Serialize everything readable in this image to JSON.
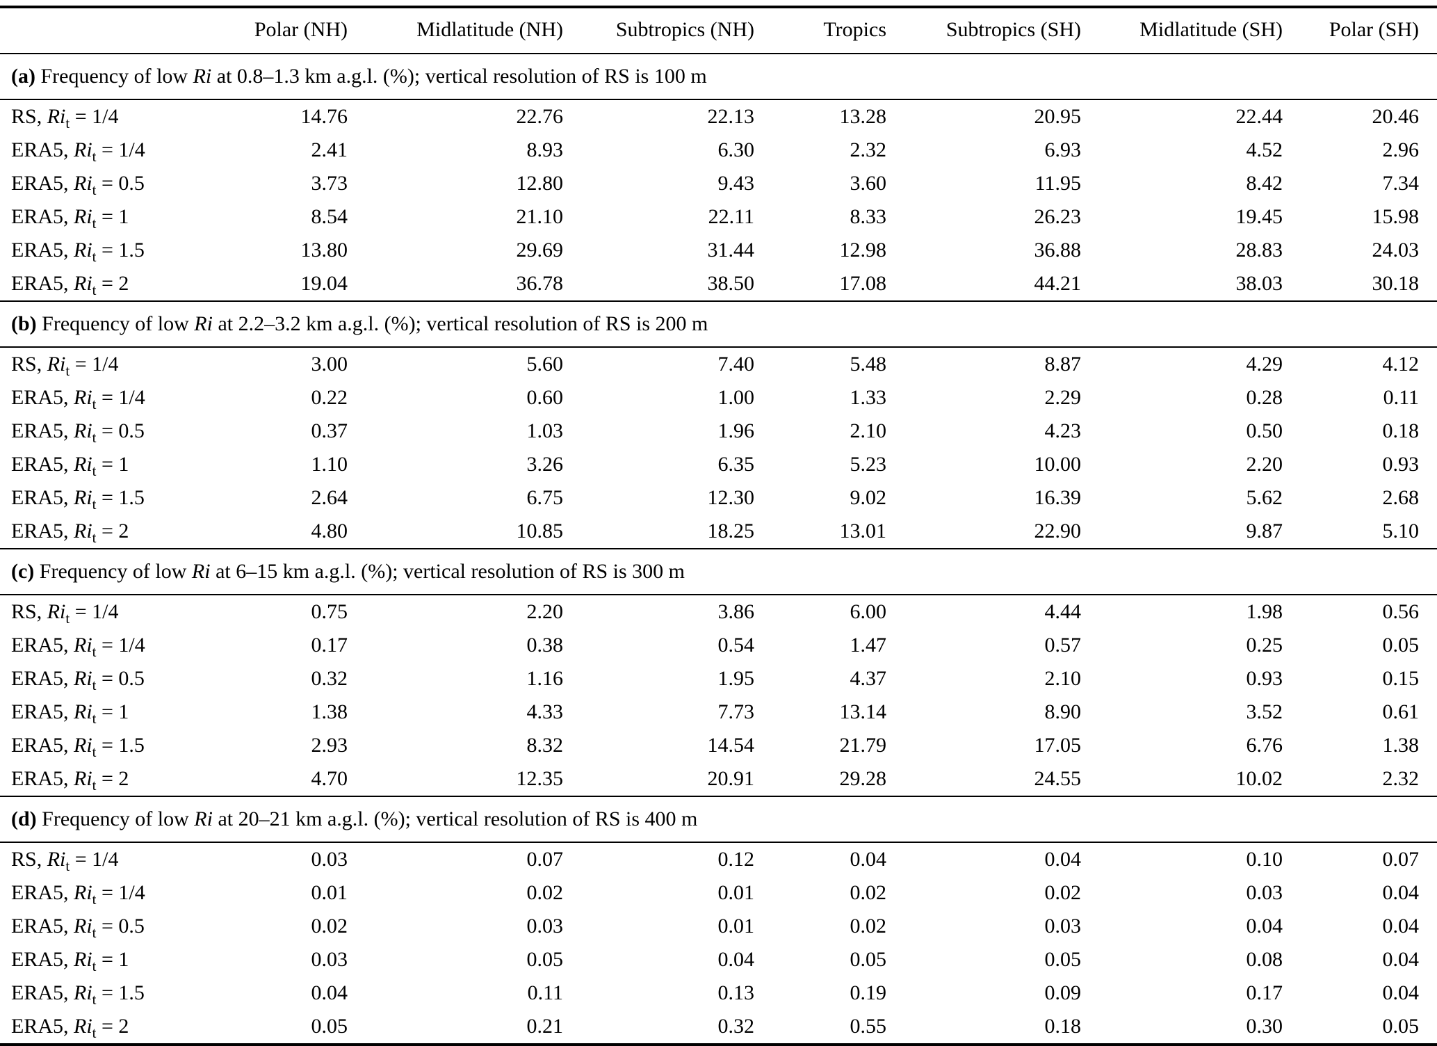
{
  "table": {
    "columns": [
      "Polar (NH)",
      "Midlatitude (NH)",
      "Subtropics (NH)",
      "Tropics",
      "Subtropics (SH)",
      "Midlatitude (SH)",
      "Polar (SH)"
    ],
    "notation": {
      "ri": "Ri",
      "subscript": "t",
      "equals": "="
    },
    "sections": [
      {
        "tag": "(a)",
        "caption_before_ri": "Frequency of low",
        "caption_after_ri": "at 0.8–1.3 km a.g.l. (%); vertical resolution of RS is 100 m",
        "rows": [
          {
            "source": "RS",
            "threshold": "1/4",
            "values": [
              "14.76",
              "22.76",
              "22.13",
              "13.28",
              "20.95",
              "22.44",
              "20.46"
            ]
          },
          {
            "source": "ERA5",
            "threshold": "1/4",
            "values": [
              "2.41",
              "8.93",
              "6.30",
              "2.32",
              "6.93",
              "4.52",
              "2.96"
            ]
          },
          {
            "source": "ERA5",
            "threshold": "0.5",
            "values": [
              "3.73",
              "12.80",
              "9.43",
              "3.60",
              "11.95",
              "8.42",
              "7.34"
            ]
          },
          {
            "source": "ERA5",
            "threshold": "1",
            "values": [
              "8.54",
              "21.10",
              "22.11",
              "8.33",
              "26.23",
              "19.45",
              "15.98"
            ]
          },
          {
            "source": "ERA5",
            "threshold": "1.5",
            "values": [
              "13.80",
              "29.69",
              "31.44",
              "12.98",
              "36.88",
              "28.83",
              "24.03"
            ]
          },
          {
            "source": "ERA5",
            "threshold": "2",
            "values": [
              "19.04",
              "36.78",
              "38.50",
              "17.08",
              "44.21",
              "38.03",
              "30.18"
            ]
          }
        ]
      },
      {
        "tag": "(b)",
        "caption_before_ri": "Frequency of low",
        "caption_after_ri": "at 2.2–3.2 km a.g.l. (%); vertical resolution of RS is 200 m",
        "rows": [
          {
            "source": "RS",
            "threshold": "1/4",
            "values": [
              "3.00",
              "5.60",
              "7.40",
              "5.48",
              "8.87",
              "4.29",
              "4.12"
            ]
          },
          {
            "source": "ERA5",
            "threshold": "1/4",
            "values": [
              "0.22",
              "0.60",
              "1.00",
              "1.33",
              "2.29",
              "0.28",
              "0.11"
            ]
          },
          {
            "source": "ERA5",
            "threshold": "0.5",
            "values": [
              "0.37",
              "1.03",
              "1.96",
              "2.10",
              "4.23",
              "0.50",
              "0.18"
            ]
          },
          {
            "source": "ERA5",
            "threshold": "1",
            "values": [
              "1.10",
              "3.26",
              "6.35",
              "5.23",
              "10.00",
              "2.20",
              "0.93"
            ]
          },
          {
            "source": "ERA5",
            "threshold": "1.5",
            "values": [
              "2.64",
              "6.75",
              "12.30",
              "9.02",
              "16.39",
              "5.62",
              "2.68"
            ]
          },
          {
            "source": "ERA5",
            "threshold": "2",
            "values": [
              "4.80",
              "10.85",
              "18.25",
              "13.01",
              "22.90",
              "9.87",
              "5.10"
            ]
          }
        ]
      },
      {
        "tag": "(c)",
        "caption_before_ri": "Frequency of low",
        "caption_after_ri": "at 6–15 km a.g.l. (%); vertical resolution of RS is 300 m",
        "rows": [
          {
            "source": "RS",
            "threshold": "1/4",
            "values": [
              "0.75",
              "2.20",
              "3.86",
              "6.00",
              "4.44",
              "1.98",
              "0.56"
            ]
          },
          {
            "source": "ERA5",
            "threshold": "1/4",
            "values": [
              "0.17",
              "0.38",
              "0.54",
              "1.47",
              "0.57",
              "0.25",
              "0.05"
            ]
          },
          {
            "source": "ERA5",
            "threshold": "0.5",
            "values": [
              "0.32",
              "1.16",
              "1.95",
              "4.37",
              "2.10",
              "0.93",
              "0.15"
            ]
          },
          {
            "source": "ERA5",
            "threshold": "1",
            "values": [
              "1.38",
              "4.33",
              "7.73",
              "13.14",
              "8.90",
              "3.52",
              "0.61"
            ]
          },
          {
            "source": "ERA5",
            "threshold": "1.5",
            "values": [
              "2.93",
              "8.32",
              "14.54",
              "21.79",
              "17.05",
              "6.76",
              "1.38"
            ]
          },
          {
            "source": "ERA5",
            "threshold": "2",
            "values": [
              "4.70",
              "12.35",
              "20.91",
              "29.28",
              "24.55",
              "10.02",
              "2.32"
            ]
          }
        ]
      },
      {
        "tag": "(d)",
        "caption_before_ri": "Frequency of low",
        "caption_after_ri": "at 20–21 km a.g.l. (%); vertical resolution of RS is 400 m",
        "rows": [
          {
            "source": "RS",
            "threshold": "1/4",
            "values": [
              "0.03",
              "0.07",
              "0.12",
              "0.04",
              "0.04",
              "0.10",
              "0.07"
            ]
          },
          {
            "source": "ERA5",
            "threshold": "1/4",
            "values": [
              "0.01",
              "0.02",
              "0.01",
              "0.02",
              "0.02",
              "0.03",
              "0.04"
            ]
          },
          {
            "source": "ERA5",
            "threshold": "0.5",
            "values": [
              "0.02",
              "0.03",
              "0.01",
              "0.02",
              "0.03",
              "0.04",
              "0.04"
            ]
          },
          {
            "source": "ERA5",
            "threshold": "1",
            "values": [
              "0.03",
              "0.05",
              "0.04",
              "0.05",
              "0.05",
              "0.08",
              "0.04"
            ]
          },
          {
            "source": "ERA5",
            "threshold": "1.5",
            "values": [
              "0.04",
              "0.11",
              "0.13",
              "0.19",
              "0.09",
              "0.17",
              "0.04"
            ]
          },
          {
            "source": "ERA5",
            "threshold": "2",
            "values": [
              "0.05",
              "0.21",
              "0.32",
              "0.55",
              "0.18",
              "0.30",
              "0.05"
            ]
          }
        ]
      }
    ]
  }
}
